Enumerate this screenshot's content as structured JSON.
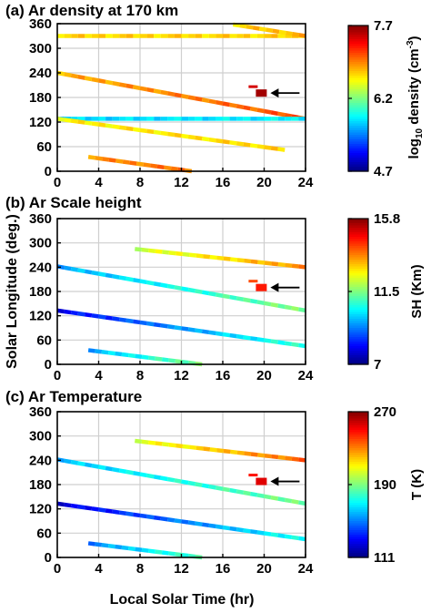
{
  "figure": {
    "ylabel": "Solar Longitude (deg.)",
    "xlabel": "Local Solar Time (hr)"
  },
  "chart_data": [
    {
      "type": "scatter",
      "panel": "a",
      "title": "(a) Ar density at 170 km",
      "xlim": [
        0,
        24
      ],
      "ylim": [
        0,
        360
      ],
      "xticks": [
        "0",
        "4",
        "8",
        "12",
        "16",
        "20",
        "24"
      ],
      "yticks": [
        "0",
        "60",
        "120",
        "180",
        "240",
        "300",
        "360"
      ],
      "grid": true,
      "colorbar": {
        "label_main": "log",
        "label_sub": "10",
        "label_rest": " density (cm",
        "label_sup": "-3",
        "label_end": ")",
        "min": 4.7,
        "max": 7.7,
        "ticks": [
          "7.7",
          "6.2",
          "4.7"
        ],
        "colormap": "jet"
      },
      "tracks": [
        {
          "x0": 0,
          "x1": 24,
          "y0": 330,
          "y1": 330,
          "v0": 6.7,
          "v1": 6.7
        },
        {
          "x0": 17,
          "x1": 24,
          "y0": 358,
          "y1": 330,
          "v0": 6.7,
          "v1": 6.8
        },
        {
          "x0": 0,
          "x1": 24,
          "y0": 240,
          "y1": 128,
          "v0": 6.8,
          "v1": 7.1
        },
        {
          "x0": 0,
          "x1": 24,
          "y0": 128,
          "y1": 128,
          "v0": 5.7,
          "v1": 5.8
        },
        {
          "x0": 0,
          "x1": 22,
          "y0": 128,
          "y1": 52,
          "v0": 6.6,
          "v1": 6.7
        },
        {
          "x0": 3,
          "x1": 13,
          "y0": 35,
          "y1": 0,
          "v0": 6.9,
          "v1": 7.0
        }
      ],
      "highlight": {
        "x": 19.2,
        "y": 193,
        "value": 7.6
      },
      "arrow": true
    },
    {
      "type": "scatter",
      "panel": "b",
      "title": "(b) Ar Scale height",
      "xlim": [
        0,
        24
      ],
      "ylim": [
        0,
        360
      ],
      "xticks": [
        "0",
        "4",
        "8",
        "12",
        "16",
        "20",
        "24"
      ],
      "yticks": [
        "0",
        "60",
        "120",
        "180",
        "240",
        "300",
        "360"
      ],
      "grid": true,
      "colorbar": {
        "label": "SH (Km)",
        "min": 7,
        "max": 15.8,
        "ticks": [
          "15.8",
          "11.5",
          "7"
        ],
        "colormap": "jet"
      },
      "tracks": [
        {
          "x0": 7.5,
          "x1": 24,
          "y0": 285,
          "y1": 240,
          "v0": 12.0,
          "v1": 13.5
        },
        {
          "x0": 0,
          "x1": 24,
          "y0": 242,
          "y1": 133,
          "v0": 9.5,
          "v1": 11.5
        },
        {
          "x0": 0,
          "x1": 24,
          "y0": 133,
          "y1": 45,
          "v0": 8.0,
          "v1": 10.8
        },
        {
          "x0": 3,
          "x1": 14,
          "y0": 35,
          "y1": 0,
          "v0": 9.5,
          "v1": 11.5
        }
      ],
      "highlight": {
        "x": 19.2,
        "y": 192,
        "value": 14.5
      },
      "arrow": true
    },
    {
      "type": "scatter",
      "panel": "c",
      "title": "(c) Ar Temperature",
      "xlim": [
        0,
        24
      ],
      "ylim": [
        0,
        360
      ],
      "xticks": [
        "0",
        "4",
        "8",
        "12",
        "16",
        "20",
        "24"
      ],
      "yticks": [
        "0",
        "60",
        "120",
        "180",
        "240",
        "300",
        "360"
      ],
      "grid": true,
      "colorbar": {
        "label": "T (K)",
        "min": 111,
        "max": 270,
        "ticks": [
          "270",
          "190",
          "111"
        ],
        "colormap": "jet"
      },
      "tracks": [
        {
          "x0": 7.5,
          "x1": 24,
          "y0": 288,
          "y1": 240,
          "v0": 205,
          "v1": 235
        },
        {
          "x0": 0,
          "x1": 24,
          "y0": 242,
          "y1": 133,
          "v0": 160,
          "v1": 190
        },
        {
          "x0": 0,
          "x1": 24,
          "y0": 133,
          "y1": 45,
          "v0": 125,
          "v1": 175
        },
        {
          "x0": 3,
          "x1": 14,
          "y0": 35,
          "y1": 0,
          "v0": 150,
          "v1": 185
        }
      ],
      "highlight": {
        "x": 19.2,
        "y": 190,
        "value": 255
      },
      "arrow": true
    }
  ]
}
